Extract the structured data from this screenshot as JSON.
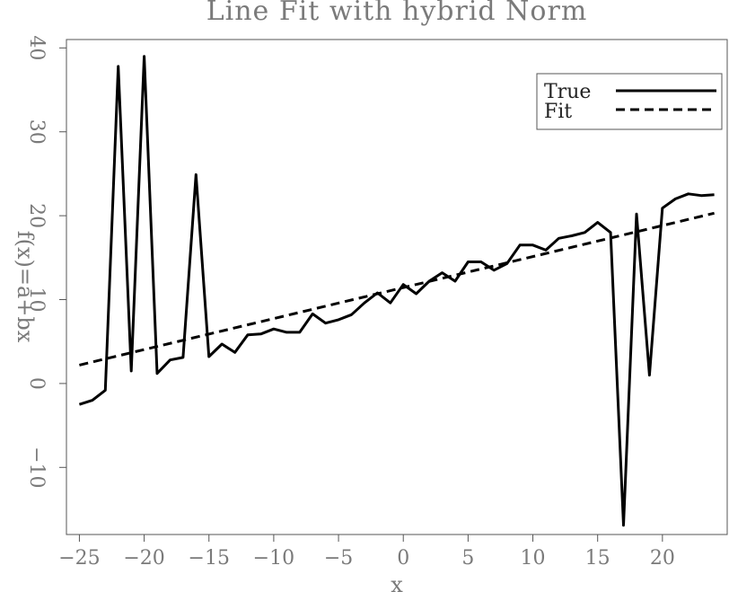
{
  "chart_data": {
    "type": "line",
    "title": "Line Fit with hybrid Norm",
    "xlabel": "x",
    "ylabel": "f(x)=a+bx",
    "xlim": [
      -26,
      25
    ],
    "ylim": [
      -18,
      41
    ],
    "xticks": [
      -25,
      -20,
      -15,
      -10,
      -5,
      0,
      5,
      10,
      15,
      20
    ],
    "yticks": [
      -10,
      0,
      10,
      20,
      30,
      40
    ],
    "grid": false,
    "legend": "top-right",
    "series": [
      {
        "name": "True",
        "style": "solid",
        "x": [
          -25,
          -24,
          -23,
          -22,
          -21,
          -20,
          -19,
          -18,
          -17,
          -16,
          -15,
          -14,
          -13,
          -12,
          -11,
          -10,
          -9,
          -8,
          -7,
          -6,
          -5,
          -4,
          -3,
          -2,
          -1,
          0,
          1,
          2,
          3,
          4,
          5,
          6,
          7,
          8,
          9,
          10,
          11,
          12,
          13,
          14,
          15,
          16,
          17,
          18,
          19,
          20,
          21,
          22,
          23,
          24
        ],
        "y": [
          -2.5,
          -2.0,
          -0.8,
          37.8,
          1.5,
          39.0,
          1.2,
          2.8,
          3.1,
          24.9,
          3.2,
          4.7,
          3.7,
          5.8,
          5.9,
          6.5,
          6.1,
          6.1,
          8.3,
          7.2,
          7.6,
          8.2,
          9.6,
          10.8,
          9.6,
          11.8,
          10.7,
          12.2,
          13.2,
          12.2,
          14.5,
          14.5,
          13.5,
          14.3,
          16.5,
          16.5,
          15.9,
          17.3,
          17.6,
          18.0,
          19.2,
          18.0,
          -16.9,
          20.2,
          1.0,
          20.9,
          22.0,
          22.6,
          22.4,
          22.5
        ]
      },
      {
        "name": "Fit",
        "style": "dashed",
        "x": [
          -25,
          24
        ],
        "y": [
          2.2,
          20.3
        ]
      }
    ]
  }
}
